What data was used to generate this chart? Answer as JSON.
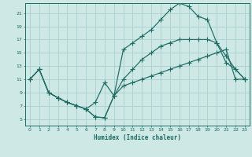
{
  "xlabel": "Humidex (Indice chaleur)",
  "xlim": [
    -0.5,
    23.5
  ],
  "ylim": [
    4,
    22.5
  ],
  "xticks": [
    0,
    1,
    2,
    3,
    4,
    5,
    6,
    7,
    8,
    9,
    10,
    11,
    12,
    13,
    14,
    15,
    16,
    17,
    18,
    19,
    20,
    21,
    22,
    23
  ],
  "yticks": [
    5,
    7,
    9,
    11,
    13,
    15,
    17,
    19,
    21
  ],
  "bg_color": "#cde8e5",
  "grid_color": "#aacfcc",
  "line_color": "#1e6b63",
  "line1_x": [
    0,
    1,
    2,
    3,
    4,
    5,
    6,
    7,
    8,
    9,
    10,
    11,
    12,
    13,
    14,
    15,
    16,
    17,
    18,
    19,
    20,
    21,
    22,
    23
  ],
  "line1_y": [
    11,
    12.5,
    9,
    8.2,
    7.5,
    7.0,
    6.5,
    5.3,
    5.2,
    8.5,
    10.0,
    10.5,
    11.0,
    11.5,
    12.0,
    12.5,
    13.0,
    13.5,
    14.0,
    14.5,
    15.0,
    15.5,
    11.0,
    11.0
  ],
  "line2_x": [
    0,
    1,
    2,
    3,
    4,
    5,
    6,
    7,
    8,
    9,
    10,
    11,
    12,
    13,
    14,
    15,
    16,
    17,
    18,
    19,
    20,
    21,
    22,
    23
  ],
  "line2_y": [
    11,
    12.5,
    9,
    8.2,
    7.5,
    7.0,
    6.5,
    7.5,
    10.5,
    8.5,
    15.5,
    16.5,
    17.5,
    18.5,
    20.0,
    21.5,
    22.5,
    22.0,
    20.5,
    20.0,
    16.5,
    14.5,
    12.5,
    11.0
  ],
  "line3_x": [
    0,
    1,
    2,
    3,
    4,
    5,
    6,
    7,
    8,
    9,
    10,
    11,
    12,
    13,
    14,
    15,
    16,
    17,
    18,
    19,
    20,
    21,
    22,
    23
  ],
  "line3_y": [
    11,
    12.5,
    9,
    8.2,
    7.5,
    7.0,
    6.5,
    5.3,
    5.2,
    8.5,
    11.0,
    12.5,
    14.0,
    15.0,
    16.0,
    16.5,
    17.0,
    17.0,
    17.0,
    17.0,
    16.5,
    13.5,
    12.5,
    11.0
  ]
}
